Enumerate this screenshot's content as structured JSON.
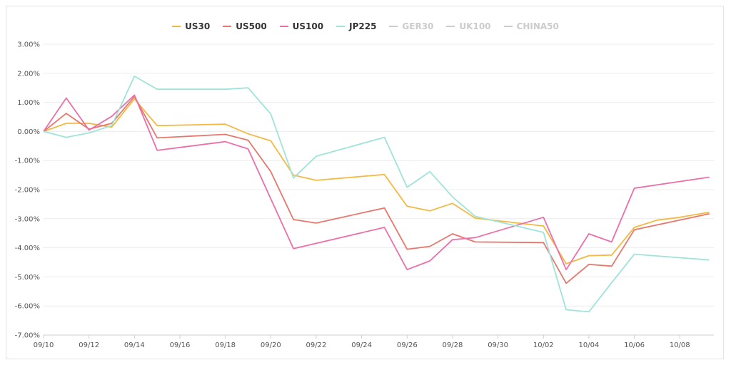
{
  "chart_data": {
    "type": "line",
    "x_ticks": [
      "09/10",
      "09/12",
      "09/14",
      "09/16",
      "09/18",
      "09/20",
      "09/22",
      "09/24",
      "09/26",
      "09/28",
      "09/30",
      "10/02",
      "10/04",
      "10/06",
      "10/08"
    ],
    "y_ticks": [
      "3.00%",
      "2.00%",
      "1.00%",
      "0.00%",
      "-1.00%",
      "-2.00%",
      "-3.00%",
      "-4.00%",
      "-5.00%",
      "-6.00%",
      "-7.00%"
    ],
    "ylim": [
      -7,
      3
    ],
    "x_day_range": [
      0,
      29.5
    ],
    "grid": true,
    "legend_position": "top",
    "series": [
      {
        "name": "US30",
        "color": "#f4b942",
        "visible": true,
        "x": [
          0,
          1,
          2,
          3,
          4,
          5,
          8,
          9,
          10,
          11,
          12,
          15,
          16,
          17,
          18,
          19,
          22,
          23,
          24,
          25,
          26,
          27,
          28,
          29.3
        ],
        "values": [
          0,
          0.28,
          0.28,
          0.15,
          1.12,
          0.2,
          0.25,
          -0.08,
          -0.32,
          -1.5,
          -1.68,
          -1.48,
          -2.57,
          -2.73,
          -2.47,
          -2.98,
          -3.25,
          -4.55,
          -4.27,
          -4.25,
          -3.3,
          -3.05,
          -2.95,
          -2.78
        ]
      },
      {
        "name": "US500",
        "color": "#e8776b",
        "visible": true,
        "x": [
          0,
          1,
          2,
          3,
          4,
          5,
          8,
          9,
          10,
          11,
          12,
          15,
          16,
          17,
          18,
          19,
          22,
          23,
          24,
          25,
          26,
          29.3
        ],
        "values": [
          0,
          0.62,
          0.08,
          0.28,
          1.2,
          -0.22,
          -0.1,
          -0.3,
          -1.38,
          -3.03,
          -3.15,
          -2.63,
          -4.05,
          -3.95,
          -3.52,
          -3.8,
          -3.82,
          -5.22,
          -4.57,
          -4.63,
          -3.38,
          -2.83
        ]
      },
      {
        "name": "US100",
        "color": "#ec6fa9",
        "visible": true,
        "x": [
          0,
          1,
          2,
          3,
          4,
          5,
          8,
          9,
          11,
          15,
          16,
          17,
          18,
          19,
          22,
          23,
          24,
          25,
          26,
          29.3
        ],
        "values": [
          0,
          1.15,
          0.05,
          0.52,
          1.25,
          -0.65,
          -0.35,
          -0.6,
          -4.03,
          -3.3,
          -4.75,
          -4.45,
          -3.72,
          -3.65,
          -2.95,
          -4.75,
          -3.52,
          -3.8,
          -1.95,
          -1.57
        ]
      },
      {
        "name": "JP225",
        "color": "#9fe3d9",
        "visible": true,
        "x": [
          0,
          1,
          2,
          3,
          4,
          5,
          8,
          9,
          10,
          11,
          12,
          15,
          16,
          17,
          18,
          19,
          22,
          23,
          24,
          25,
          26,
          29.3
        ],
        "values": [
          0,
          -0.2,
          -0.05,
          0.2,
          1.9,
          1.45,
          1.45,
          1.5,
          0.6,
          -1.6,
          -0.85,
          -0.2,
          -1.92,
          -1.38,
          -2.25,
          -2.92,
          -3.47,
          -6.13,
          -6.2,
          -5.2,
          -4.22,
          -4.42
        ]
      },
      {
        "name": "GER30",
        "color": "#cccccc",
        "visible": false,
        "x": [],
        "values": []
      },
      {
        "name": "UK100",
        "color": "#cccccc",
        "visible": false,
        "x": [],
        "values": []
      },
      {
        "name": "CHINA50",
        "color": "#cccccc",
        "visible": false,
        "x": [],
        "values": []
      }
    ]
  }
}
